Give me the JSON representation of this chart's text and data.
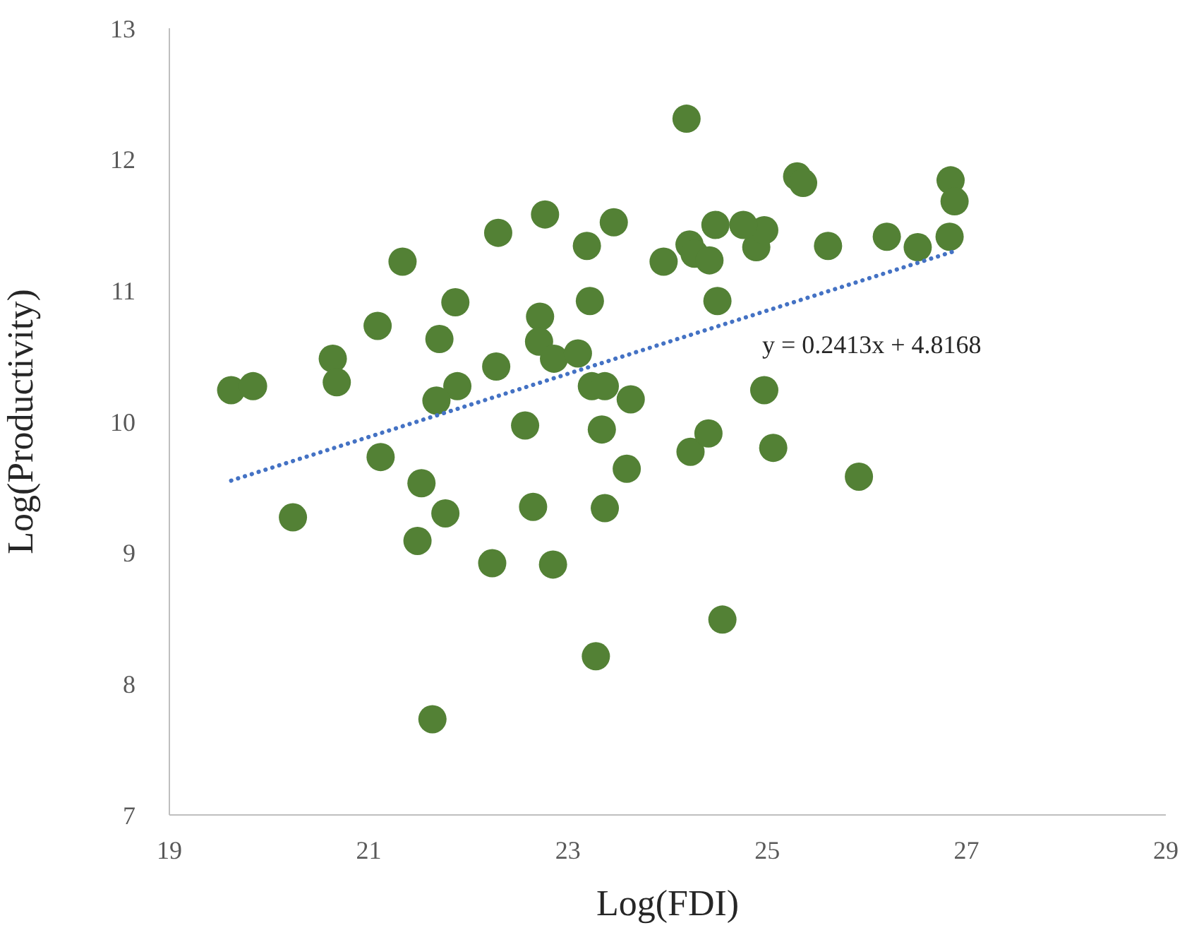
{
  "chart_data": {
    "type": "scatter",
    "xlabel": "Log(FDI)",
    "ylabel": "Log(Productivity)",
    "xlim": [
      19,
      29
    ],
    "xticks": [
      19,
      21,
      23,
      25,
      27,
      29
    ],
    "ylim": [
      7,
      13
    ],
    "yticks": [
      7,
      8,
      9,
      10,
      11,
      12,
      13
    ],
    "grid": false,
    "legend": false,
    "marker": "circle",
    "series": [
      {
        "color": "#538135",
        "x": [
          20.24,
          21.12,
          21.53,
          21.77,
          21.49,
          22.24,
          22.85,
          22.57,
          22.65,
          23.34,
          23.37,
          23.59,
          24.23,
          24.41,
          25.06,
          25.92,
          24.55,
          23.28,
          21.64,
          23.63,
          19.62,
          19.84,
          20.64,
          20.68,
          21.09,
          21.34,
          21.71,
          21.87,
          21.89,
          21.68,
          22.28,
          22.3,
          22.77,
          22.72,
          22.71,
          22.86,
          24.19,
          25.3,
          25.36,
          26.84,
          26.88,
          26.83,
          26.51,
          26.2,
          25.61,
          24.89,
          24.97,
          24.76,
          24.48,
          24.22,
          24.27,
          24.42,
          23.96,
          23.46,
          23.19,
          23.22,
          24.5,
          23.1,
          23.24,
          23.37,
          24.97
        ],
        "values": [
          9.27,
          9.73,
          9.53,
          9.3,
          9.09,
          8.92,
          8.91,
          9.97,
          9.35,
          9.94,
          9.34,
          9.64,
          9.77,
          9.91,
          9.8,
          9.58,
          8.49,
          8.21,
          7.73,
          10.17,
          10.24,
          10.27,
          10.48,
          10.3,
          10.73,
          11.22,
          10.63,
          10.91,
          10.27,
          10.16,
          10.42,
          11.44,
          11.58,
          10.8,
          10.61,
          10.48,
          12.31,
          11.87,
          11.82,
          11.84,
          11.68,
          11.41,
          11.33,
          11.41,
          11.34,
          11.33,
          11.46,
          11.5,
          11.5,
          11.35,
          11.28,
          11.23,
          11.22,
          11.52,
          11.34,
          10.92,
          10.92,
          10.52,
          10.27,
          10.27,
          10.24
        ]
      },
      {
        "type": "line",
        "color": "#4472c4",
        "line_style": "dotted",
        "marker": "none",
        "x": [
          19.62,
          26.88
        ],
        "values": [
          9.55,
          11.3
        ]
      }
    ],
    "annotations": [
      "y = 0.2413x + 4.8168"
    ]
  }
}
